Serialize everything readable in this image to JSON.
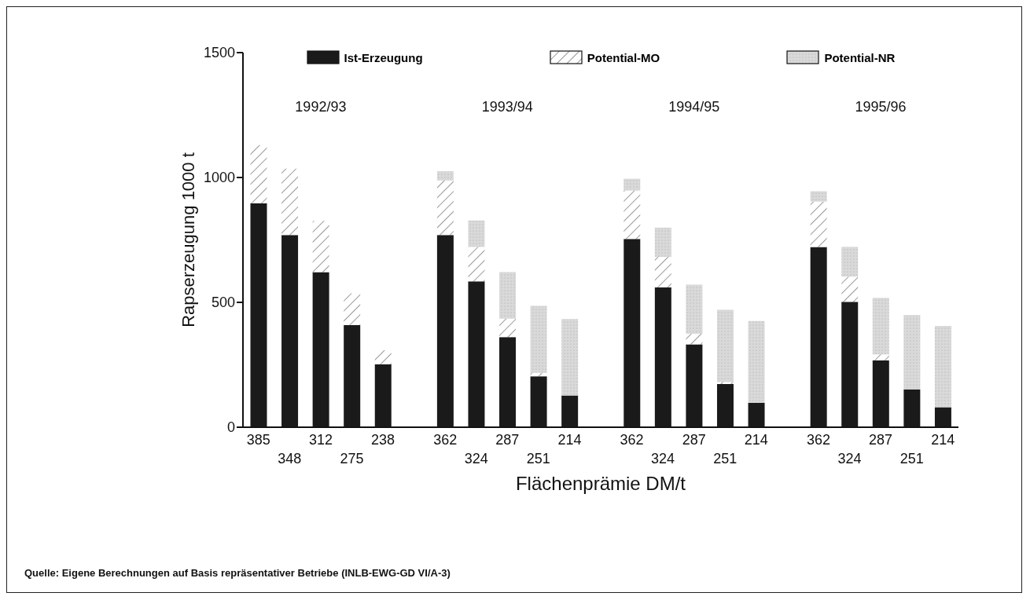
{
  "chart_data": {
    "type": "bar",
    "stacked": true,
    "ylabel": "Rapserzeugung 1000 t",
    "xlabel": "Flächenprämie DM/t",
    "categories": [
      "385",
      "348",
      "312",
      "275",
      "238",
      null,
      "362",
      "324",
      "287",
      "251",
      "214",
      null,
      "362",
      "324",
      "287",
      "251",
      "214",
      null,
      "362",
      "324",
      "287",
      "251",
      "214"
    ],
    "series": [
      {
        "name": "Ist-Erzeugung",
        "color": "#1a1a1a",
        "values": [
          897,
          770,
          621,
          409,
          252,
          null,
          770,
          584,
          361,
          204,
          127,
          null,
          754,
          560,
          332,
          173,
          98,
          null,
          722,
          502,
          268,
          151,
          80
        ]
      },
      {
        "name": "Potential-MO",
        "color": "#ffffff",
        "values": [
          233,
          265,
          205,
          127,
          56,
          null,
          218,
          138,
          74,
          14,
          0,
          null,
          194,
          122,
          42,
          8,
          0,
          null,
          181,
          101,
          24,
          0,
          0
        ]
      },
      {
        "name": "Potential-NR",
        "color": "#d9d9d9",
        "values": [
          0,
          0,
          0,
          0,
          0,
          null,
          37,
          106,
          186,
          268,
          306,
          null,
          47,
          117,
          197,
          289,
          327,
          null,
          42,
          119,
          226,
          298,
          326
        ]
      }
    ],
    "ylim": [
      0,
      1500
    ],
    "yticks": [
      0,
      500,
      1000,
      1500
    ],
    "grid": false,
    "legend": "top",
    "annotations": [
      "1992/93",
      "1993/94",
      "1994/95",
      "1995/96",
      "Quelle: Eigene Berechnungen auf Basis repräsentativer Betriebe (INLB-EWG-GD VI/A-3)"
    ]
  }
}
